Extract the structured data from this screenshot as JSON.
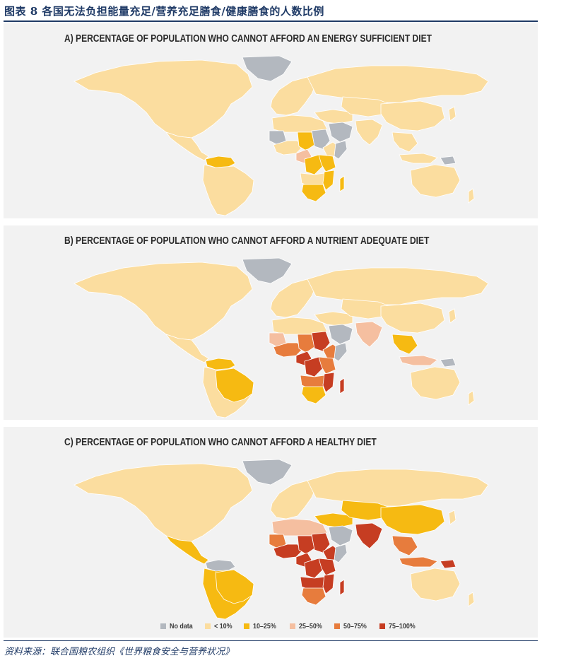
{
  "figure_title": "图表 8   各国无法负担能量充足/营养充足膳食/健康膳食的人数比例",
  "source": "资料来源：联合国粮农组织《世界粮食安全与营养状况》",
  "colors": {
    "no_data": "#b3b8bf",
    "lt10": "#fbdd9f",
    "p10_25": "#f6ba12",
    "p25_50": "#f5bfa0",
    "p50_75": "#e77c3d",
    "p75_100": "#c63d22",
    "ocean": "#f2f2f2"
  },
  "panels": [
    {
      "title": "A) PERCENTAGE OF POPULATION WHO CANNOT AFFORD AN ENERGY SUFFICIENT DIET"
    },
    {
      "title": "B) PERCENTAGE OF POPULATION WHO CANNOT AFFORD A NUTRIENT ADEQUATE DIET"
    },
    {
      "title": "C) PERCENTAGE OF POPULATION WHO CANNOT AFFORD A HEALTHY DIET"
    }
  ],
  "legend": [
    {
      "label": "No data",
      "color": "#b3b8bf"
    },
    {
      "label": "< 10%",
      "color": "#fbdd9f"
    },
    {
      "label": "10–25%",
      "color": "#f6ba12"
    },
    {
      "label": "25–50%",
      "color": "#f5bfa0"
    },
    {
      "label": "50–75%",
      "color": "#e77c3d"
    },
    {
      "label": "75–100%",
      "color": "#c63d22"
    }
  ],
  "regions": {
    "A": {
      "north_america": "lt10",
      "greenland": "no_data",
      "central_america": "lt10",
      "south_america": "lt10",
      "venezuela": "p10_25",
      "guyana": "p10_25",
      "europe": "lt10",
      "russia": "lt10",
      "north_africa": "lt10",
      "west_africa": "lt10",
      "chad": "p10_25",
      "sahel_west": "no_data",
      "sudan": "no_data",
      "ethiopia": "lt10",
      "somalia": "no_data",
      "central_africa": "p25_50",
      "drc": "p10_25",
      "east_africa": "p10_25",
      "angola_zambia": "lt10",
      "mozambique": "p10_25",
      "southern_africa": "p10_25",
      "madagascar": "p10_25",
      "middle_east": "lt10",
      "arabia": "no_data",
      "central_asia": "lt10",
      "south_asia": "lt10",
      "china": "lt10",
      "southeast_asia": "lt10",
      "indonesia": "lt10",
      "png": "no_data",
      "australia": "lt10",
      "japan": "lt10",
      "nz": "lt10"
    },
    "B": {
      "north_america": "lt10",
      "greenland": "no_data",
      "central_america": "lt10",
      "south_america": "lt10",
      "brazil": "p10_25",
      "venezuela": "p10_25",
      "europe": "lt10",
      "russia": "lt10",
      "north_africa": "lt10",
      "west_africa": "p50_75",
      "chad": "p50_75",
      "sahel_west": "p25_50",
      "sudan": "p75_100",
      "ethiopia": "p50_75",
      "somalia": "no_data",
      "central_africa": "p75_100",
      "drc": "p75_100",
      "east_africa": "p50_75",
      "angola_zambia": "p50_75",
      "mozambique": "p75_100",
      "southern_africa": "p10_25",
      "madagascar": "p75_100",
      "middle_east": "lt10",
      "arabia": "no_data",
      "central_asia": "lt10",
      "south_asia": "p25_50",
      "china": "lt10",
      "southeast_asia": "p10_25",
      "indonesia": "p25_50",
      "png": "no_data",
      "australia": "lt10",
      "japan": "lt10",
      "nz": "lt10"
    },
    "C": {
      "north_america": "lt10",
      "greenland": "no_data",
      "central_america": "p10_25",
      "south_america": "p10_25",
      "brazil": "p10_25",
      "venezuela": "no_data",
      "europe": "lt10",
      "russia": "lt10",
      "north_africa": "p25_50",
      "west_africa": "p75_100",
      "chad": "p75_100",
      "sahel_west": "p50_75",
      "sudan": "p75_100",
      "ethiopia": "p75_100",
      "somalia": "no_data",
      "central_africa": "p75_100",
      "drc": "p75_100",
      "east_africa": "p75_100",
      "angola_zambia": "p75_100",
      "mozambique": "p75_100",
      "southern_africa": "p50_75",
      "madagascar": "p75_100",
      "middle_east": "p10_25",
      "arabia": "no_data",
      "central_asia": "p10_25",
      "south_asia": "p75_100",
      "china": "p10_25",
      "southeast_asia": "p50_75",
      "indonesia": "p50_75",
      "png": "p75_100",
      "australia": "lt10",
      "japan": "lt10",
      "nz": "lt10"
    }
  }
}
